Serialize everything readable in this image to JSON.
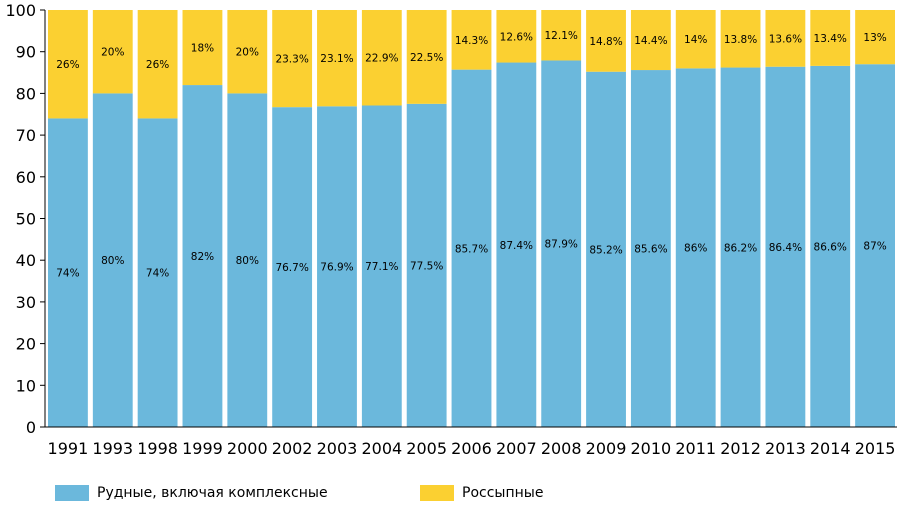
{
  "chart_data": {
    "type": "bar",
    "stacked": true,
    "categories": [
      "1991",
      "1993",
      "1998",
      "1999",
      "2000",
      "2002",
      "2003",
      "2004",
      "2005",
      "2006",
      "2007",
      "2008",
      "2009",
      "2010",
      "2011",
      "2012",
      "2013",
      "2014",
      "2015"
    ],
    "series": [
      {
        "name": "Рудные, включая комплексные",
        "color": "#6bb8dc",
        "values": [
          74,
          80,
          74,
          82,
          80,
          76.7,
          76.9,
          77.1,
          77.5,
          85.7,
          87.4,
          87.9,
          85.2,
          85.6,
          86,
          86.2,
          86.4,
          86.6,
          87
        ],
        "labels": [
          "74%",
          "80%",
          "74%",
          "82%",
          "80%",
          "76.7%",
          "76.9%",
          "77.1%",
          "77.5%",
          "85.7%",
          "87.4%",
          "87.9%",
          "85.2%",
          "85.6%",
          "86%",
          "86.2%",
          "86.4%",
          "86.6%",
          "87%"
        ]
      },
      {
        "name": "Россыпные",
        "color": "#fbd031",
        "values": [
          26,
          20,
          26,
          18,
          20,
          23.3,
          23.1,
          22.9,
          22.5,
          14.3,
          12.6,
          12.1,
          14.8,
          14.4,
          14,
          13.8,
          13.6,
          13.4,
          13
        ],
        "labels": [
          "26%",
          "20%",
          "26%",
          "18%",
          "20%",
          "23.3%",
          "23.1%",
          "22.9%",
          "22.5%",
          "14.3%",
          "12.6%",
          "12.1%",
          "14.8%",
          "14.4%",
          "14%",
          "13.8%",
          "13.6%",
          "13.4%",
          "13%"
        ]
      }
    ],
    "ylim": [
      0,
      100
    ],
    "yticks": [
      "0",
      "10",
      "20",
      "30",
      "40",
      "50",
      "60",
      "70",
      "80",
      "90",
      "100"
    ],
    "legend_position": "bottom-left",
    "grid": false
  }
}
